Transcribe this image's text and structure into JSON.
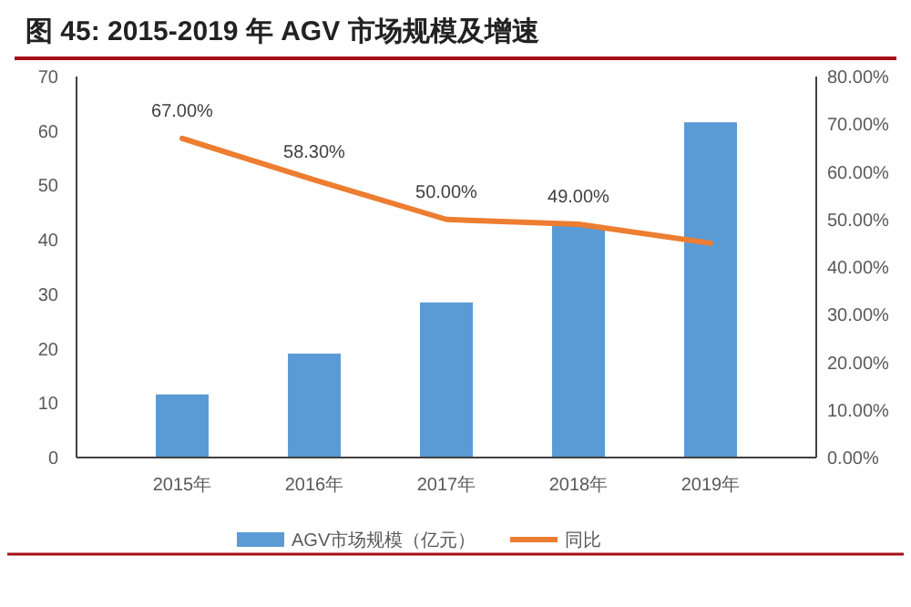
{
  "chart_data": {
    "type": "bar",
    "title": "图 45:  2015-2019 年 AGV 市场规模及增速",
    "categories": [
      "2015年",
      "2016年",
      "2017年",
      "2018年",
      "2019年"
    ],
    "series": [
      {
        "name": "AGV市场规模（亿元）",
        "color": "#5b9bd5",
        "values": [
          11.6,
          19.1,
          28.5,
          42.6,
          61.6
        ]
      },
      {
        "name": "同比",
        "type": "line",
        "axis": "y2",
        "color": "#ed7d31",
        "values": [
          67,
          58.3,
          50,
          49,
          45
        ],
        "value_labels": [
          "67.00%",
          "58.30%",
          "50.00%",
          "49.00%",
          null
        ]
      }
    ],
    "ylim": [
      0,
      70
    ],
    "yticks": [
      0,
      10,
      20,
      30,
      40,
      50,
      60,
      70
    ],
    "y2lim": [
      0,
      80
    ],
    "y2ticks": [
      {
        "value": 0,
        "label": "0.00%"
      },
      {
        "value": 10,
        "label": "10.00%"
      },
      {
        "value": 20,
        "label": "20.00%"
      },
      {
        "value": 30,
        "label": "30.00%"
      },
      {
        "value": 40,
        "label": "40.00%"
      },
      {
        "value": 50,
        "label": "50.00%"
      },
      {
        "value": 60,
        "label": "60.00%"
      },
      {
        "value": 70,
        "label": "70.00%"
      },
      {
        "value": 80,
        "label": "80.00%"
      }
    ],
    "legend": "bottom"
  }
}
